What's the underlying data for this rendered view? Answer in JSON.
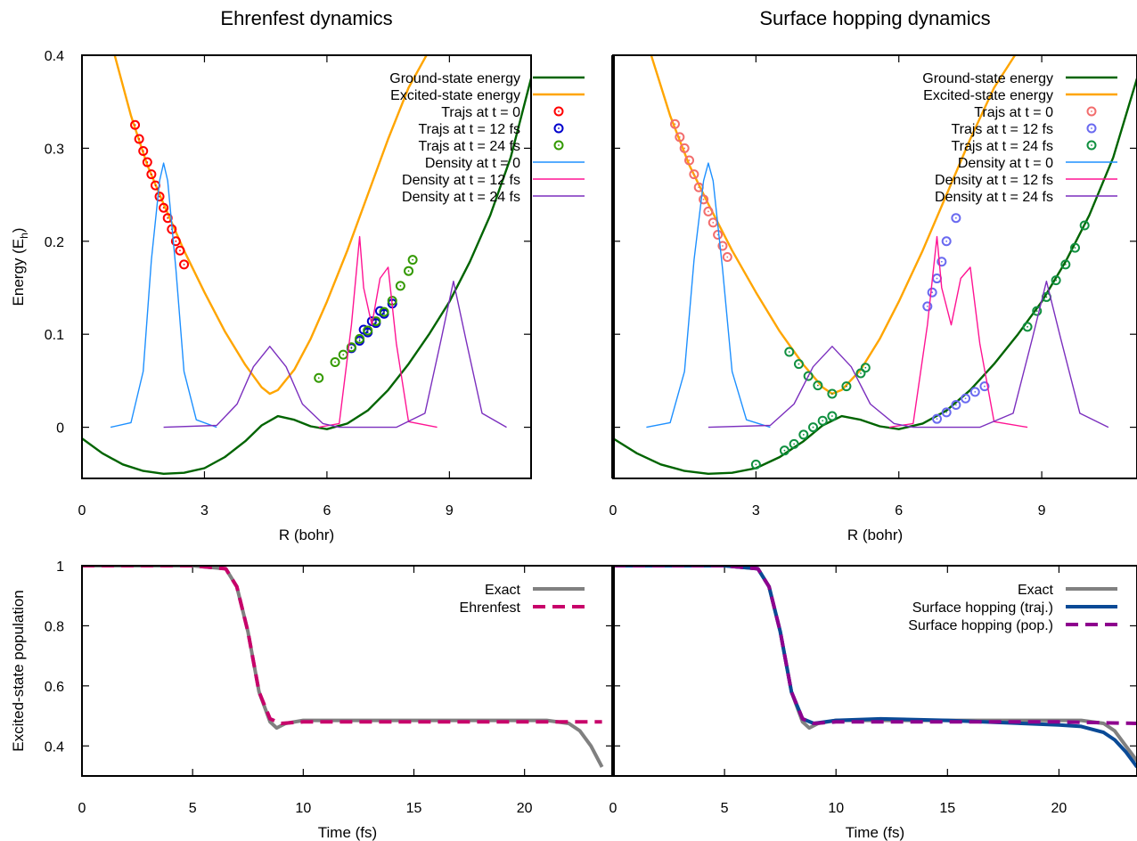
{
  "chart_data": [
    {
      "type": "line",
      "title": "Ehrenfest dynamics",
      "xlabel": "R (bohr)",
      "ylabel": "Energy (E",
      "ylabel_sub": "h",
      "ylabel_close": ")",
      "xlim": [
        0,
        11
      ],
      "ylim": [
        -0.055,
        0.4
      ],
      "xticks": [
        0,
        3,
        6,
        9
      ],
      "xtick_labels": [
        "0",
        "3",
        "6",
        "9"
      ],
      "yticks": [
        0,
        0.1,
        0.2,
        0.3,
        0.4
      ],
      "ytick_labels": [
        "0",
        "0.1",
        "0.2",
        "0.3",
        "0.4"
      ],
      "legend_position": "top-right",
      "series": [
        {
          "name": "Ground-state energy",
          "kind": "curve",
          "color": "#006400",
          "x": [
            0,
            0.5,
            1,
            1.5,
            2,
            2.5,
            3,
            3.5,
            4,
            4.4,
            4.8,
            5.2,
            5.6,
            6,
            6.5,
            7,
            7.5,
            8,
            8.5,
            9,
            9.5,
            10,
            10.5,
            11
          ],
          "y": [
            -0.012,
            -0.028,
            -0.04,
            -0.047,
            -0.05,
            -0.049,
            -0.044,
            -0.032,
            -0.015,
            0.002,
            0.012,
            0.008,
            0.001,
            -0.002,
            0.004,
            0.018,
            0.04,
            0.068,
            0.1,
            0.135,
            0.178,
            0.228,
            0.29,
            0.375
          ]
        },
        {
          "name": "Excited-state energy",
          "kind": "curve",
          "color": "#FFA500",
          "x": [
            0.8,
            1.2,
            1.6,
            2,
            2.5,
            3,
            3.5,
            4,
            4.4,
            4.6,
            4.8,
            5.2,
            5.6,
            6,
            6.5,
            7,
            7.5,
            8,
            8.5
          ],
          "y": [
            0.4,
            0.335,
            0.282,
            0.24,
            0.19,
            0.145,
            0.103,
            0.067,
            0.043,
            0.036,
            0.04,
            0.062,
            0.095,
            0.135,
            0.19,
            0.25,
            0.31,
            0.365,
            0.405
          ]
        },
        {
          "name": "Trajs at t = 0",
          "kind": "markers",
          "color": "#FF0000",
          "x": [
            1.3,
            1.4,
            1.5,
            1.6,
            1.7,
            1.8,
            1.9,
            2.0,
            2.1,
            2.2,
            2.3,
            2.4,
            2.5
          ],
          "y": [
            0.325,
            0.31,
            0.297,
            0.285,
            0.272,
            0.26,
            0.248,
            0.236,
            0.225,
            0.213,
            0.2,
            0.19,
            0.175
          ]
        },
        {
          "name": "Trajs at t = 12 fs",
          "kind": "markers",
          "color": "#0000CC",
          "x": [
            6.6,
            6.8,
            7.0,
            7.2,
            7.4,
            7.6,
            6.9,
            7.1,
            7.3
          ],
          "y": [
            0.085,
            0.093,
            0.102,
            0.112,
            0.122,
            0.133,
            0.105,
            0.114,
            0.125
          ]
        },
        {
          "name": "Trajs at t = 24 fs",
          "kind": "markers",
          "color": "#339900",
          "x": [
            5.8,
            6.2,
            6.4,
            6.6,
            6.8,
            7.0,
            7.2,
            7.4,
            7.6,
            7.8,
            8.0,
            8.1
          ],
          "y": [
            0.053,
            0.07,
            0.078,
            0.086,
            0.095,
            0.104,
            0.114,
            0.124,
            0.136,
            0.152,
            0.168,
            0.18
          ]
        },
        {
          "name": "Density at t = 0",
          "kind": "curve",
          "color": "#1E90FF",
          "x": [
            0.7,
            1.2,
            1.5,
            1.7,
            1.9,
            2.0,
            2.1,
            2.3,
            2.5,
            2.8,
            3.3
          ],
          "y": [
            0.0,
            0.005,
            0.06,
            0.18,
            0.265,
            0.284,
            0.265,
            0.17,
            0.06,
            0.008,
            0.0
          ]
        },
        {
          "name": "Density at t = 12 fs",
          "kind": "curve",
          "color": "#FF1493",
          "x": [
            5.8,
            6.3,
            6.6,
            6.8,
            6.9,
            7.1,
            7.3,
            7.5,
            7.7,
            8.0,
            8.7
          ],
          "y": [
            0.0,
            0.004,
            0.11,
            0.205,
            0.15,
            0.11,
            0.16,
            0.172,
            0.09,
            0.006,
            0.0
          ]
        },
        {
          "name": "Density at t = 24 fs",
          "kind": "curve",
          "color": "#7B2FBE",
          "x": [
            2.0,
            3.3,
            3.8,
            4.2,
            4.6,
            5.0,
            5.4,
            5.9,
            6.3,
            7.7,
            8.4,
            8.8,
            9.1,
            9.4,
            9.8,
            10.4
          ],
          "y": [
            0.0,
            0.002,
            0.025,
            0.065,
            0.087,
            0.065,
            0.025,
            0.004,
            0.0,
            0.0,
            0.015,
            0.095,
            0.157,
            0.095,
            0.015,
            0.0
          ]
        }
      ]
    },
    {
      "type": "line",
      "title": "Surface hopping dynamics",
      "xlabel": "R (bohr)",
      "xlim": [
        0,
        11
      ],
      "ylim": [
        -0.055,
        0.4
      ],
      "xticks": [
        0,
        3,
        6,
        9
      ],
      "xtick_labels": [
        "0",
        "3",
        "6",
        "9"
      ],
      "legend_position": "top-right",
      "series": [
        {
          "name": "Ground-state energy",
          "kind": "curve",
          "color": "#006400",
          "x": [
            0,
            0.5,
            1,
            1.5,
            2,
            2.5,
            3,
            3.5,
            4,
            4.4,
            4.8,
            5.2,
            5.6,
            6,
            6.5,
            7,
            7.5,
            8,
            8.5,
            9,
            9.5,
            10,
            10.5,
            11
          ],
          "y": [
            -0.012,
            -0.028,
            -0.04,
            -0.047,
            -0.05,
            -0.049,
            -0.044,
            -0.032,
            -0.015,
            0.002,
            0.012,
            0.008,
            0.001,
            -0.002,
            0.004,
            0.018,
            0.04,
            0.068,
            0.1,
            0.135,
            0.178,
            0.228,
            0.29,
            0.375
          ]
        },
        {
          "name": "Excited-state energy",
          "kind": "curve",
          "color": "#FFA500",
          "x": [
            0.8,
            1.2,
            1.6,
            2,
            2.5,
            3,
            3.5,
            4,
            4.4,
            4.6,
            4.8,
            5.2,
            5.6,
            6,
            6.5,
            7,
            7.5,
            8,
            8.5
          ],
          "y": [
            0.4,
            0.335,
            0.282,
            0.24,
            0.19,
            0.145,
            0.103,
            0.067,
            0.043,
            0.036,
            0.04,
            0.062,
            0.095,
            0.135,
            0.19,
            0.25,
            0.31,
            0.365,
            0.405
          ]
        },
        {
          "name": "Trajs at t = 0",
          "kind": "markers",
          "color": "#F26D6D",
          "x": [
            1.3,
            1.4,
            1.5,
            1.6,
            1.7,
            1.8,
            1.9,
            2.0,
            2.1,
            2.2,
            2.3,
            2.4
          ],
          "y": [
            0.326,
            0.312,
            0.3,
            0.287,
            0.272,
            0.258,
            0.245,
            0.232,
            0.22,
            0.207,
            0.195,
            0.183
          ]
        },
        {
          "name": "Trajs at t = 12 fs",
          "kind": "markers",
          "color": "#6A6AF0",
          "x": [
            6.6,
            6.7,
            6.8,
            6.9,
            7.0,
            7.2,
            6.8,
            7.0,
            7.2,
            7.4,
            7.6,
            7.8
          ],
          "y": [
            0.13,
            0.145,
            0.16,
            0.178,
            0.2,
            0.225,
            0.009,
            0.016,
            0.024,
            0.031,
            0.038,
            0.044
          ]
        },
        {
          "name": "Trajs at t = 24 fs",
          "kind": "markers",
          "color": "#109040",
          "x": [
            3.0,
            3.6,
            3.8,
            4.0,
            4.2,
            4.4,
            4.6,
            3.7,
            3.9,
            4.1,
            4.3,
            4.6,
            4.9,
            5.2,
            5.3,
            8.7,
            8.9,
            9.1,
            9.3,
            9.5,
            9.7,
            9.9
          ],
          "y": [
            -0.04,
            -0.025,
            -0.018,
            -0.008,
            0.0,
            0.007,
            0.012,
            0.081,
            0.068,
            0.055,
            0.045,
            0.036,
            0.044,
            0.058,
            0.064,
            0.108,
            0.125,
            0.14,
            0.158,
            0.175,
            0.193,
            0.217
          ]
        },
        {
          "name": "Density at t = 0",
          "kind": "curve",
          "color": "#1E90FF",
          "x": [
            0.7,
            1.2,
            1.5,
            1.7,
            1.9,
            2.0,
            2.1,
            2.3,
            2.5,
            2.8,
            3.3
          ],
          "y": [
            0.0,
            0.005,
            0.06,
            0.18,
            0.265,
            0.284,
            0.265,
            0.17,
            0.06,
            0.008,
            0.0
          ]
        },
        {
          "name": "Density at t = 12 fs",
          "kind": "curve",
          "color": "#FF1493",
          "x": [
            5.8,
            6.3,
            6.6,
            6.8,
            6.9,
            7.1,
            7.3,
            7.5,
            7.7,
            8.0,
            8.7
          ],
          "y": [
            0.0,
            0.004,
            0.11,
            0.205,
            0.15,
            0.11,
            0.16,
            0.172,
            0.09,
            0.006,
            0.0
          ]
        },
        {
          "name": "Density at t = 24 fs",
          "kind": "curve",
          "color": "#7B2FBE",
          "x": [
            2.0,
            3.3,
            3.8,
            4.2,
            4.6,
            5.0,
            5.4,
            5.9,
            6.3,
            7.7,
            8.4,
            8.8,
            9.1,
            9.4,
            9.8,
            10.4
          ],
          "y": [
            0.0,
            0.002,
            0.025,
            0.065,
            0.087,
            0.065,
            0.025,
            0.004,
            0.0,
            0.0,
            0.015,
            0.095,
            0.157,
            0.095,
            0.015,
            0.0
          ]
        }
      ]
    },
    {
      "type": "line",
      "xlabel": "Time (fs)",
      "ylabel": "Excited-state population",
      "xlim": [
        0,
        24
      ],
      "ylim": [
        0.3,
        1.0
      ],
      "xticks": [
        0,
        5,
        10,
        15,
        20
      ],
      "xtick_labels": [
        "0",
        "5",
        "10",
        "15",
        "20"
      ],
      "yticks": [
        0.4,
        0.6,
        0.8,
        1.0
      ],
      "ytick_labels": [
        "0.4",
        "0.6",
        "0.8",
        "1"
      ],
      "legend_position": "top-right",
      "series": [
        {
          "name": "Exact",
          "color": "#808080",
          "dash": "solid",
          "x": [
            0,
            5,
            6.5,
            7.0,
            7.5,
            8.0,
            8.5,
            8.8,
            9.2,
            10,
            15,
            21,
            22,
            22.5,
            23,
            23.5
          ],
          "y": [
            1.0,
            1.0,
            0.99,
            0.93,
            0.78,
            0.58,
            0.48,
            0.46,
            0.475,
            0.485,
            0.485,
            0.485,
            0.475,
            0.45,
            0.4,
            0.33
          ]
        },
        {
          "name": "Ehrenfest",
          "color": "#C8006A",
          "dash": "dash",
          "x": [
            0,
            5,
            6.5,
            7.0,
            7.5,
            8.0,
            8.5,
            9.0,
            10,
            15,
            20,
            23.5
          ],
          "y": [
            1.0,
            1.0,
            0.99,
            0.93,
            0.78,
            0.58,
            0.49,
            0.475,
            0.48,
            0.48,
            0.48,
            0.48
          ]
        }
      ]
    },
    {
      "type": "line",
      "xlabel": "Time (fs)",
      "xlim": [
        0,
        23.5
      ],
      "ylim": [
        0.3,
        1.0
      ],
      "xticks": [
        0,
        5,
        10,
        15,
        20
      ],
      "xtick_labels": [
        "0",
        "5",
        "10",
        "15",
        "20"
      ],
      "legend_position": "top-right",
      "series": [
        {
          "name": "Exact",
          "color": "#808080",
          "dash": "solid",
          "x": [
            0,
            5,
            6.5,
            7.0,
            7.5,
            8.0,
            8.5,
            8.8,
            9.2,
            10,
            15,
            21,
            22,
            22.5,
            23,
            23.5
          ],
          "y": [
            1.0,
            1.0,
            0.99,
            0.93,
            0.78,
            0.58,
            0.48,
            0.46,
            0.475,
            0.485,
            0.485,
            0.485,
            0.475,
            0.45,
            0.4,
            0.35
          ]
        },
        {
          "name": "Surface hopping (traj.)",
          "color": "#0A4A96",
          "dash": "solid",
          "x": [
            0,
            5,
            6.5,
            7.0,
            7.5,
            8.0,
            8.5,
            9.0,
            10,
            12,
            15,
            20,
            21,
            22,
            22.5,
            23,
            23.5
          ],
          "y": [
            1.0,
            1.0,
            0.99,
            0.93,
            0.78,
            0.58,
            0.49,
            0.475,
            0.485,
            0.49,
            0.485,
            0.47,
            0.465,
            0.445,
            0.42,
            0.38,
            0.33
          ]
        },
        {
          "name": "Surface hopping (pop.)",
          "color": "#8E008E",
          "dash": "dash",
          "x": [
            0,
            5,
            6.5,
            7.0,
            7.5,
            8.0,
            8.5,
            9.0,
            10,
            15,
            20,
            23.5
          ],
          "y": [
            1.0,
            1.0,
            0.99,
            0.93,
            0.78,
            0.58,
            0.49,
            0.475,
            0.48,
            0.48,
            0.48,
            0.475
          ]
        }
      ]
    }
  ]
}
